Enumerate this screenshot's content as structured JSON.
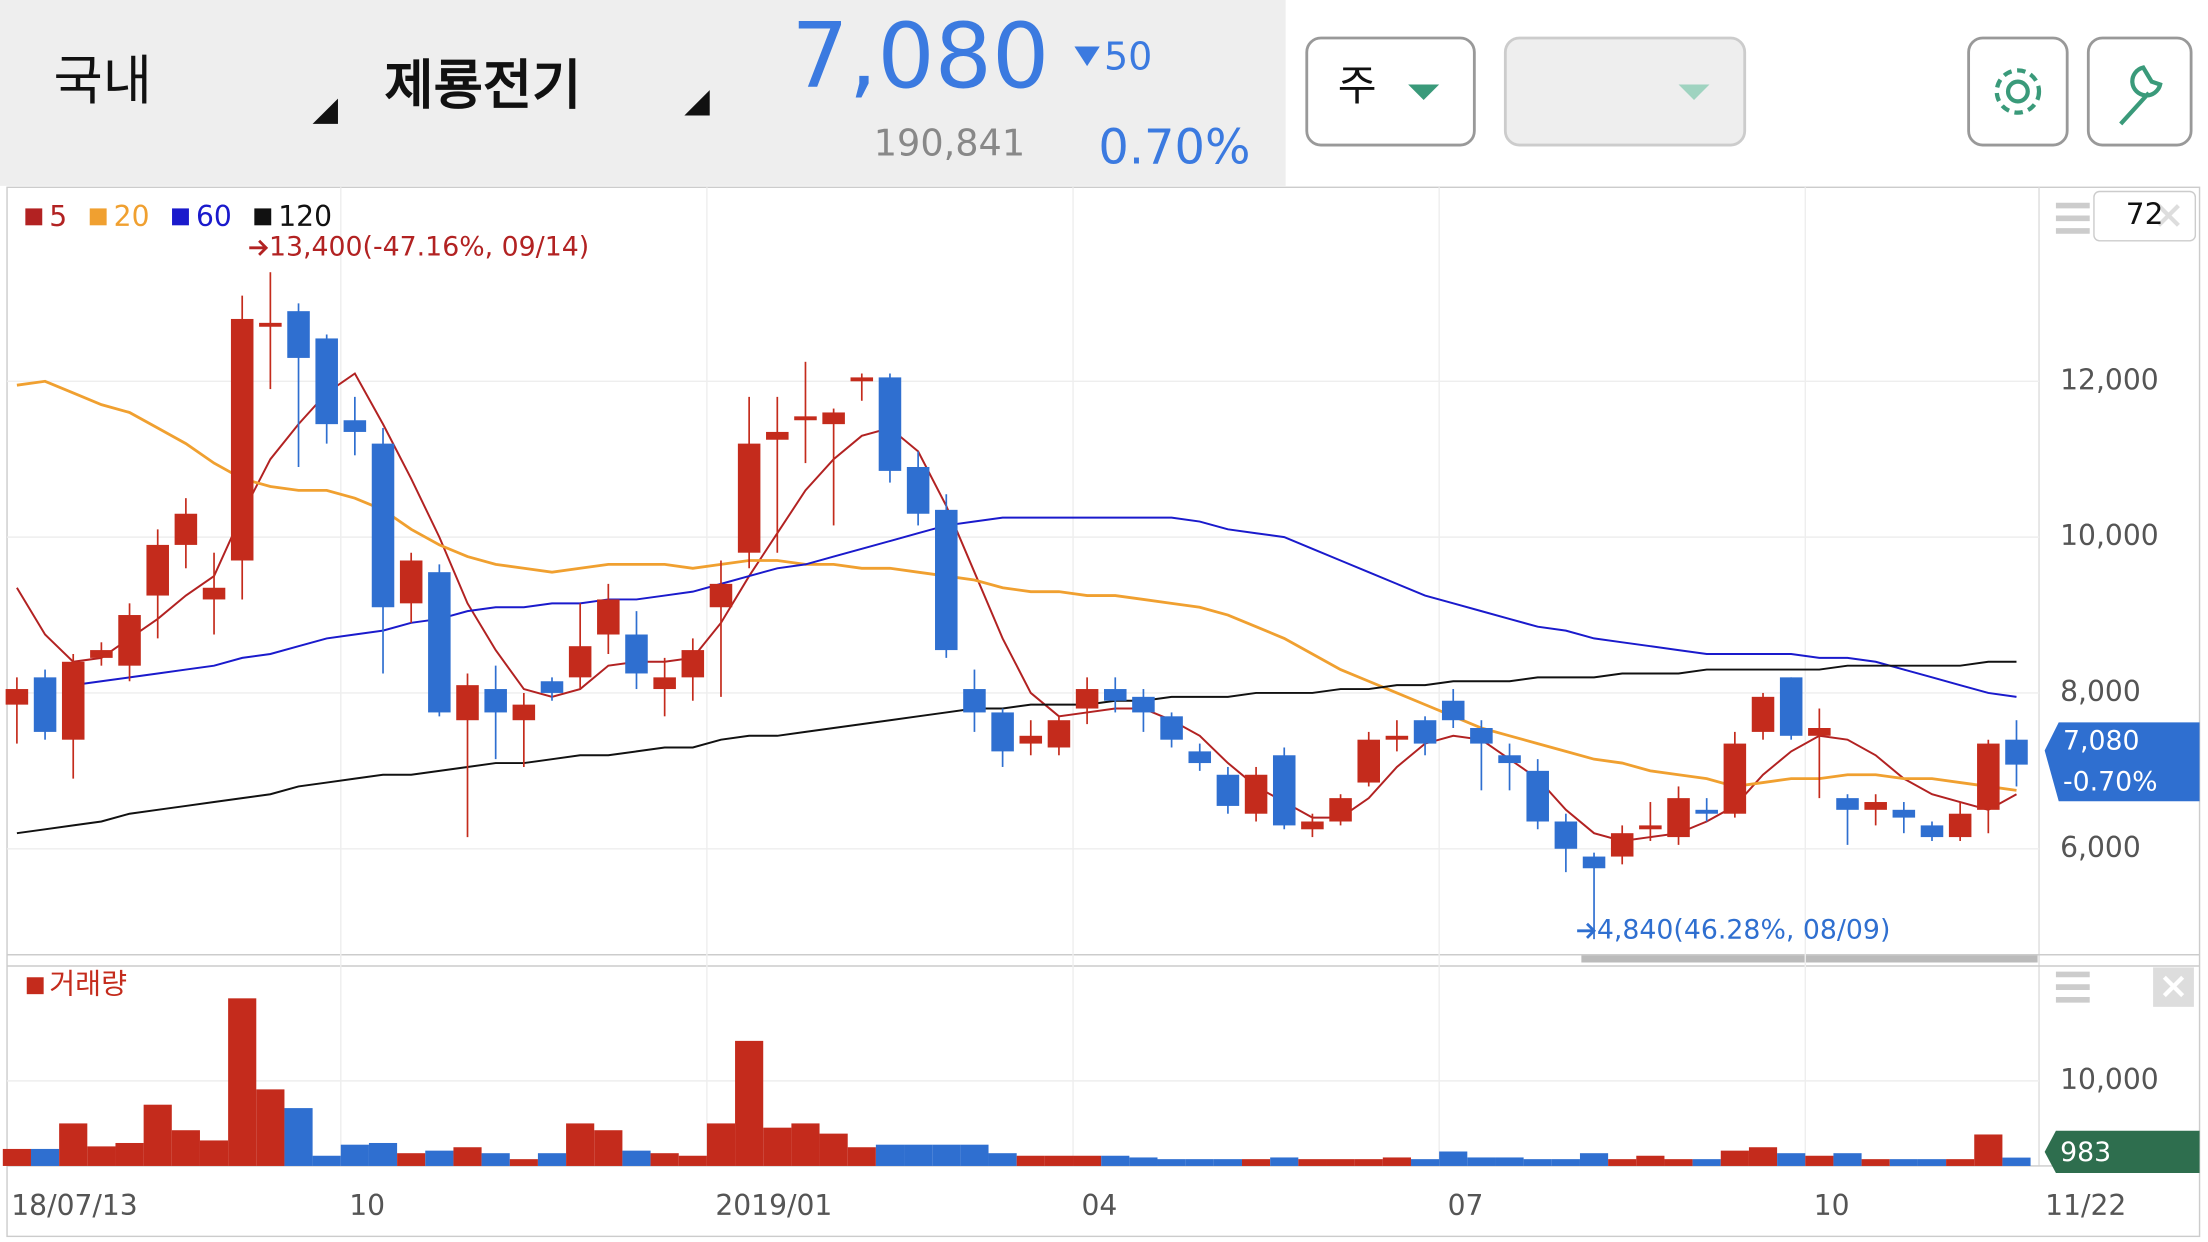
{
  "header": {
    "market": "국내",
    "stock": "제룡전기",
    "price": "7,080",
    "change": "50",
    "volume": "190,841",
    "change_rate": "0.70%"
  },
  "controls": {
    "period": "주",
    "count": "72"
  },
  "chart_data": [
    {
      "type": "candlestick",
      "categories": [
        "18/07/13",
        null,
        null,
        null,
        null,
        null,
        null,
        null,
        null,
        null,
        null,
        null,
        "10",
        null,
        null,
        null,
        null,
        null,
        null,
        null,
        null,
        null,
        null,
        null,
        null,
        "2019/01",
        null,
        null,
        null,
        null,
        null,
        null,
        null,
        null,
        null,
        null,
        null,
        null,
        "04",
        null,
        null,
        null,
        null,
        null,
        null,
        null,
        null,
        null,
        null,
        null,
        null,
        "07",
        null,
        null,
        null,
        null,
        null,
        null,
        null,
        null,
        null,
        null,
        null,
        null,
        "10",
        null,
        null,
        null,
        null,
        null,
        null,
        "11/22"
      ],
      "open": [
        7850,
        8200,
        7400,
        8450,
        8350,
        9250,
        9900,
        9200,
        9700,
        12700,
        12900,
        12550,
        11500,
        11200,
        9150,
        9550,
        7650,
        8050,
        7650,
        8150,
        8200,
        8750,
        8750,
        8050,
        8200,
        9100,
        9800,
        11250,
        11500,
        11450,
        12000,
        12050,
        10900,
        10350,
        8050,
        7750,
        7350,
        7300,
        7800,
        8050,
        7950,
        7700,
        7250,
        6950,
        6450,
        7200,
        6250,
        6350,
        6850,
        7400,
        7650,
        7900,
        7550,
        7200,
        7000,
        6350,
        5900,
        5900,
        6250,
        6150,
        6500,
        6450,
        7500,
        8200,
        7450,
        6650,
        6500,
        6500,
        6300,
        6150,
        6500,
        7400
      ],
      "high": [
        8200,
        8300,
        8500,
        8650,
        9150,
        10100,
        10500,
        9800,
        13100,
        13400,
        13000,
        12600,
        11800,
        11400,
        9800,
        9650,
        8250,
        8350,
        8000,
        8200,
        9150,
        9400,
        9050,
        8450,
        8700,
        9700,
        11800,
        11800,
        12250,
        11650,
        12100,
        12100,
        11100,
        10550,
        8300,
        7800,
        7650,
        7700,
        8200,
        8200,
        8050,
        7750,
        7350,
        7050,
        7050,
        7300,
        6450,
        6700,
        7500,
        7650,
        7700,
        8050,
        7650,
        7350,
        7150,
        6450,
        5950,
        6300,
        6600,
        6800,
        6650,
        7500,
        8000,
        8200,
        7800,
        6700,
        6700,
        6600,
        6350,
        6600,
        7400,
        7650
      ],
      "low": [
        7350,
        7400,
        6900,
        8350,
        8150,
        8700,
        9600,
        8750,
        9200,
        11900,
        10900,
        11200,
        11050,
        8250,
        8900,
        7700,
        6150,
        7150,
        7050,
        7900,
        8050,
        8500,
        8050,
        7700,
        7900,
        7950,
        9600,
        9800,
        10950,
        10150,
        11750,
        10700,
        10150,
        8450,
        7500,
        7050,
        7200,
        7200,
        7600,
        7750,
        7500,
        7300,
        7000,
        6450,
        6350,
        6250,
        6150,
        6300,
        6800,
        7250,
        7200,
        7550,
        6750,
        6750,
        6250,
        5700,
        4840,
        5800,
        6100,
        6050,
        6350,
        6400,
        7400,
        7400,
        6650,
        6050,
        6300,
        6200,
        6100,
        6100,
        6200,
        6800
      ],
      "close": [
        8050,
        7500,
        8400,
        8550,
        9000,
        9900,
        10300,
        9350,
        12800,
        12750,
        12300,
        11450,
        11350,
        9100,
        9700,
        7750,
        8100,
        7750,
        7850,
        8000,
        8600,
        9200,
        8250,
        8200,
        8550,
        9400,
        11200,
        11350,
        11550,
        11600,
        12050,
        10850,
        10300,
        8550,
        7750,
        7250,
        7450,
        7650,
        8050,
        7900,
        7750,
        7400,
        7100,
        6550,
        6950,
        6300,
        6350,
        6650,
        7400,
        7450,
        7350,
        7650,
        7350,
        7100,
        6350,
        6000,
        5750,
        6200,
        6300,
        6650,
        6450,
        7350,
        7950,
        7450,
        7550,
        6500,
        6600,
        6400,
        6150,
        6450,
        7350,
        7080
      ],
      "up_color": "#c42b1c",
      "down_color": "#2f6fd0",
      "series": [
        {
          "name": "5",
          "color": "#b22222",
          "values": [
            9350,
            8750,
            8400,
            8450,
            8700,
            8950,
            9250,
            9500,
            10300,
            11000,
            11450,
            11850,
            12100,
            11450,
            10750,
            10000,
            9150,
            8550,
            8050,
            7950,
            8050,
            8350,
            8400,
            8400,
            8450,
            8900,
            9500,
            10050,
            10600,
            11000,
            11300,
            11400,
            11100,
            10400,
            9550,
            8700,
            8000,
            7700,
            7750,
            7800,
            7800,
            7650,
            7450,
            7100,
            6800,
            6600,
            6400,
            6400,
            6650,
            7050,
            7350,
            7450,
            7400,
            7150,
            6900,
            6500,
            6200,
            6100,
            6150,
            6200,
            6350,
            6550,
            6950,
            7250,
            7450,
            7400,
            7200,
            6900,
            6700,
            6600,
            6500,
            6700
          ]
        },
        {
          "name": "20",
          "color": "#f0a030",
          "values": [
            11950,
            12000,
            11850,
            11700,
            11600,
            11400,
            11200,
            10950,
            10750,
            10650,
            10600,
            10600,
            10500,
            10350,
            10100,
            9900,
            9750,
            9650,
            9600,
            9550,
            9600,
            9650,
            9650,
            9650,
            9600,
            9650,
            9700,
            9700,
            9650,
            9650,
            9600,
            9600,
            9550,
            9500,
            9450,
            9350,
            9300,
            9300,
            9250,
            9250,
            9200,
            9150,
            9100,
            9000,
            8850,
            8700,
            8500,
            8300,
            8150,
            8000,
            7850,
            7700,
            7550,
            7450,
            7350,
            7250,
            7150,
            7100,
            7000,
            6950,
            6900,
            6800,
            6850,
            6900,
            6900,
            6950,
            6950,
            6900,
            6900,
            6850,
            6800,
            6750
          ]
        },
        {
          "name": "60",
          "color": "#1a1acc",
          "values": [
            null,
            null,
            8100,
            8150,
            8200,
            8250,
            8300,
            8350,
            8450,
            8500,
            8600,
            8700,
            8750,
            8800,
            8900,
            8950,
            9050,
            9100,
            9100,
            9150,
            9150,
            9200,
            9200,
            9250,
            9300,
            9400,
            9500,
            9600,
            9650,
            9750,
            9850,
            9950,
            10050,
            10150,
            10200,
            10250,
            10250,
            10250,
            10250,
            10250,
            10250,
            10250,
            10200,
            10100,
            10050,
            10000,
            9850,
            9700,
            9550,
            9400,
            9250,
            9150,
            9050,
            8950,
            8850,
            8800,
            8700,
            8650,
            8600,
            8550,
            8500,
            8500,
            8500,
            8500,
            8450,
            8450,
            8400,
            8300,
            8200,
            8100,
            8000,
            7950
          ]
        },
        {
          "name": "120",
          "color": "#111111",
          "values": [
            6200,
            6250,
            6300,
            6350,
            6450,
            6500,
            6550,
            6600,
            6650,
            6700,
            6800,
            6850,
            6900,
            6950,
            6950,
            7000,
            7050,
            7100,
            7100,
            7150,
            7200,
            7200,
            7250,
            7300,
            7300,
            7400,
            7450,
            7450,
            7500,
            7550,
            7600,
            7650,
            7700,
            7750,
            7800,
            7800,
            7850,
            7850,
            7850,
            7900,
            7900,
            7950,
            7950,
            7950,
            8000,
            8000,
            8000,
            8050,
            8050,
            8100,
            8100,
            8150,
            8150,
            8150,
            8200,
            8200,
            8200,
            8250,
            8250,
            8250,
            8300,
            8300,
            8300,
            8300,
            8300,
            8350,
            8350,
            8350,
            8350,
            8350,
            8400,
            8400
          ]
        }
      ],
      "annotations": [
        {
          "text": "13,400(-47.16%, 09/14)",
          "color": "#b22222"
        },
        {
          "text": "4,840(46.28%, 08/09)",
          "color": "#2f6fd0"
        }
      ],
      "last_price_label": "7,080",
      "last_change_label": "-0.70%",
      "ylim": [
        4640,
        14490
      ],
      "yticks": [
        {
          "value": 6000,
          "label": "6,000"
        },
        {
          "value": 8000,
          "label": "8,000"
        },
        {
          "value": 10000,
          "label": "10,000"
        },
        {
          "value": 12000,
          "label": "12,000"
        }
      ],
      "grid": true
    },
    {
      "type": "bar",
      "title": "거래량",
      "title_color": "#c42b1c",
      "last_color": "#2e6e4e",
      "values": [
        2000,
        2000,
        5000,
        2300,
        2700,
        7200,
        4200,
        3000,
        19700,
        9000,
        6800,
        1200,
        2500,
        2700,
        1500,
        1800,
        2200,
        1500,
        800,
        1500,
        5000,
        4200,
        1800,
        1500,
        1200,
        5000,
        14700,
        4500,
        5000,
        3800,
        2200,
        2500,
        2500,
        2500,
        2500,
        1500,
        1200,
        1200,
        1200,
        1200,
        1000,
        800,
        800,
        800,
        800,
        1000,
        800,
        800,
        800,
        1000,
        800,
        1700,
        1000,
        1000,
        800,
        800,
        1500,
        800,
        1200,
        800,
        800,
        1800,
        2200,
        1500,
        1200,
        1500,
        800,
        800,
        800,
        800,
        3700,
        983
      ],
      "ylim": [
        0,
        23500
      ],
      "yticks": [
        {
          "value": 10000,
          "label": "10,000"
        }
      ],
      "grid": true
    }
  ]
}
